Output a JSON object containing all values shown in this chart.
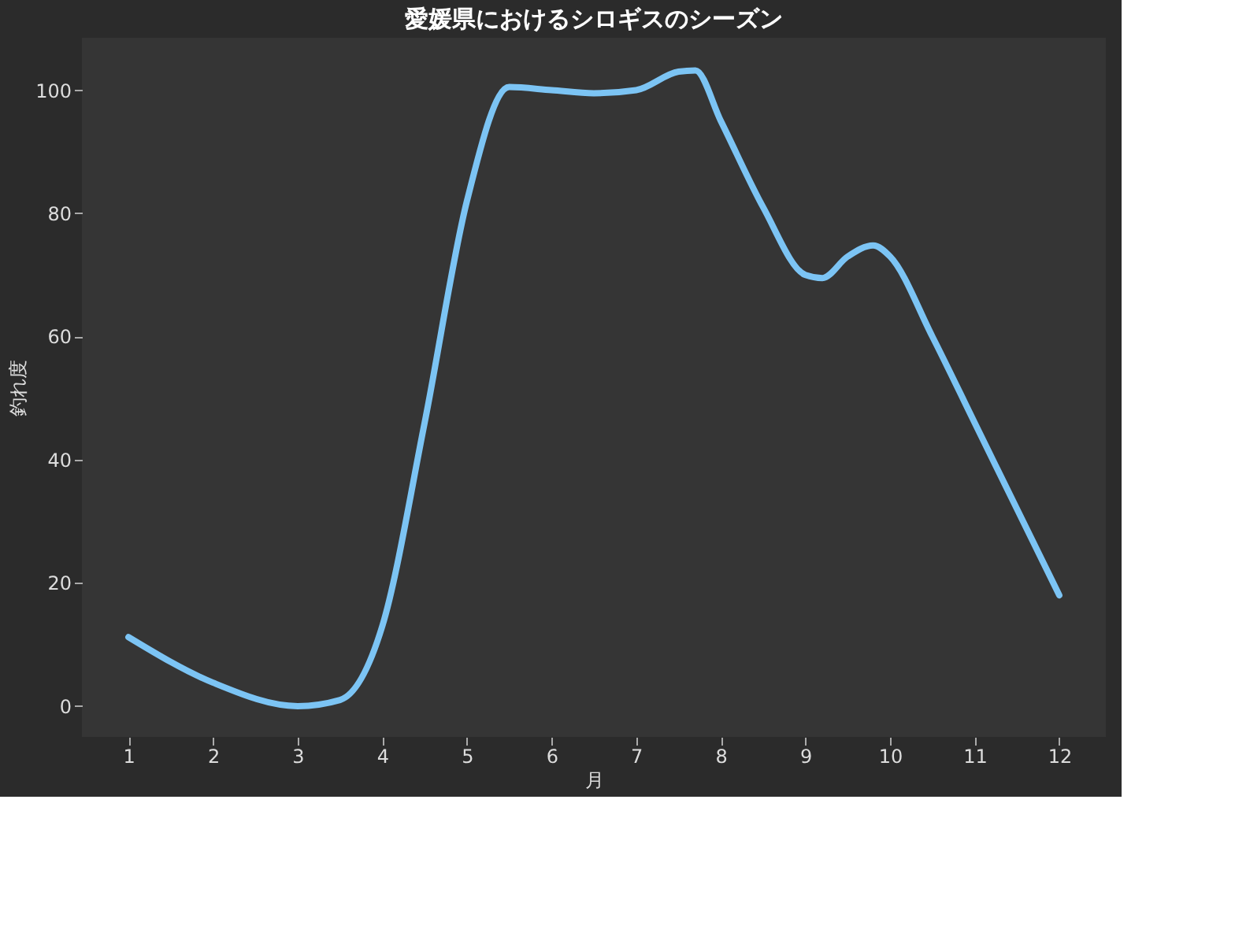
{
  "chart_data": {
    "type": "line",
    "title": "愛媛県におけるシロギスのシーズン",
    "xlabel": "月",
    "ylabel": "釣れ度",
    "xlim": [
      0.45,
      12.55
    ],
    "xticks": [
      1,
      2,
      3,
      4,
      5,
      6,
      7,
      8,
      9,
      10,
      11,
      12
    ],
    "ylim": [
      -5,
      108.5
    ],
    "yticks": [
      0,
      20,
      40,
      60,
      80,
      100
    ],
    "grid": false,
    "legend": false,
    "series": [
      {
        "color": "#7cc4f4",
        "x": [
          1,
          2,
          3,
          3.5,
          4,
          4.5,
          5,
          5.5,
          6,
          6.5,
          7,
          7.5,
          7.7,
          8,
          8.5,
          9,
          9.2,
          9.5,
          9.8,
          10,
          10.5,
          11,
          11.5,
          12
        ],
        "values": [
          11.2,
          3.8,
          0,
          1,
          13,
          46,
          82,
          100.5,
          100,
          99.5,
          100,
          103,
          103.2,
          95,
          81,
          70,
          69.5,
          73,
          74.8,
          73,
          60,
          46,
          32,
          18
        ]
      }
    ]
  }
}
